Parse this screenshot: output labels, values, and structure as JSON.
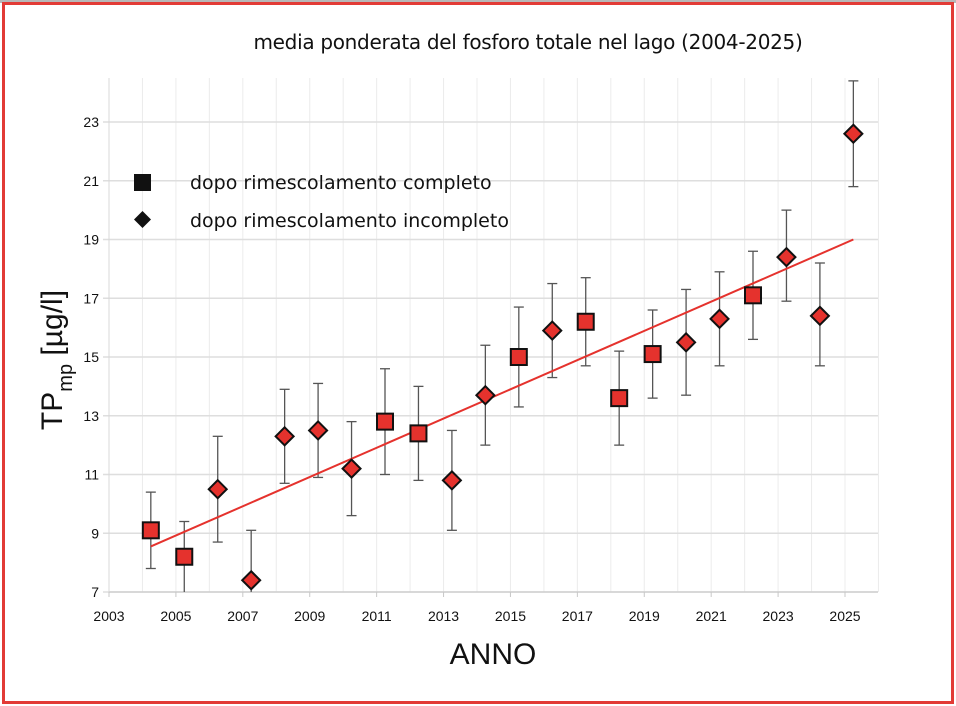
{
  "chart_data": {
    "type": "scatter",
    "title": "media ponderata del fosforo totale nel lago (2004-2025)",
    "xlabel": "ANNO",
    "ylabel": "TP",
    "ylabel_sub": "mp",
    "ylabel_unit": " [µg/l]",
    "xlim": [
      2003,
      2026
    ],
    "ylim": [
      7,
      24.5
    ],
    "x_ticks": [
      2003,
      2005,
      2007,
      2009,
      2011,
      2013,
      2015,
      2017,
      2019,
      2021,
      2023,
      2025
    ],
    "y_ticks": [
      7,
      9,
      11,
      13,
      15,
      17,
      19,
      21,
      23
    ],
    "grid": true,
    "legend": {
      "position": "top-left",
      "entries": [
        {
          "label": "dopo rimescolamento completo",
          "marker": "square"
        },
        {
          "label": "dopo rimescolamento incompleto",
          "marker": "diamond"
        }
      ]
    },
    "marker_color": "#e5322d",
    "trend_color": "#e5322d",
    "points": [
      {
        "year": 2004,
        "value": 9.1,
        "err_low": 7.8,
        "err_high": 10.4,
        "marker": "square"
      },
      {
        "year": 2005,
        "value": 8.2,
        "err_low": 7.0,
        "err_high": 9.4,
        "marker": "square"
      },
      {
        "year": 2006,
        "value": 10.5,
        "err_low": 8.7,
        "err_high": 12.3,
        "marker": "diamond"
      },
      {
        "year": 2007,
        "value": 7.4,
        "err_low": 7.0,
        "err_high": 9.1,
        "marker": "diamond"
      },
      {
        "year": 2008,
        "value": 12.3,
        "err_low": 10.7,
        "err_high": 13.9,
        "marker": "diamond"
      },
      {
        "year": 2009,
        "value": 12.5,
        "err_low": 10.9,
        "err_high": 14.1,
        "marker": "diamond"
      },
      {
        "year": 2010,
        "value": 11.2,
        "err_low": 9.6,
        "err_high": 12.8,
        "marker": "diamond"
      },
      {
        "year": 2011,
        "value": 12.8,
        "err_low": 11.0,
        "err_high": 14.6,
        "marker": "square"
      },
      {
        "year": 2012,
        "value": 12.4,
        "err_low": 10.8,
        "err_high": 14.0,
        "marker": "square"
      },
      {
        "year": 2013,
        "value": 10.8,
        "err_low": 9.1,
        "err_high": 12.5,
        "marker": "diamond"
      },
      {
        "year": 2014,
        "value": 13.7,
        "err_low": 12.0,
        "err_high": 15.4,
        "marker": "diamond"
      },
      {
        "year": 2015,
        "value": 15.0,
        "err_low": 13.3,
        "err_high": 16.7,
        "marker": "square"
      },
      {
        "year": 2016,
        "value": 15.9,
        "err_low": 14.3,
        "err_high": 17.5,
        "marker": "diamond"
      },
      {
        "year": 2017,
        "value": 16.2,
        "err_low": 14.7,
        "err_high": 17.7,
        "marker": "square"
      },
      {
        "year": 2018,
        "value": 13.6,
        "err_low": 12.0,
        "err_high": 15.2,
        "marker": "square"
      },
      {
        "year": 2019,
        "value": 15.1,
        "err_low": 13.6,
        "err_high": 16.6,
        "marker": "square"
      },
      {
        "year": 2020,
        "value": 15.5,
        "err_low": 13.7,
        "err_high": 17.3,
        "marker": "diamond"
      },
      {
        "year": 2021,
        "value": 16.3,
        "err_low": 14.7,
        "err_high": 17.9,
        "marker": "diamond"
      },
      {
        "year": 2022,
        "value": 17.1,
        "err_low": 15.6,
        "err_high": 18.6,
        "marker": "square"
      },
      {
        "year": 2023,
        "value": 18.4,
        "err_low": 16.9,
        "err_high": 20.0,
        "marker": "diamond"
      },
      {
        "year": 2024,
        "value": 16.4,
        "err_low": 14.7,
        "err_high": 18.2,
        "marker": "diamond"
      },
      {
        "year": 2025,
        "value": 22.6,
        "err_low": 20.8,
        "err_high": 24.4,
        "marker": "diamond"
      }
    ],
    "trend_line": {
      "start": {
        "year": 2004,
        "value": 8.55
      },
      "end": {
        "year": 2025,
        "value": 19.0
      }
    }
  }
}
